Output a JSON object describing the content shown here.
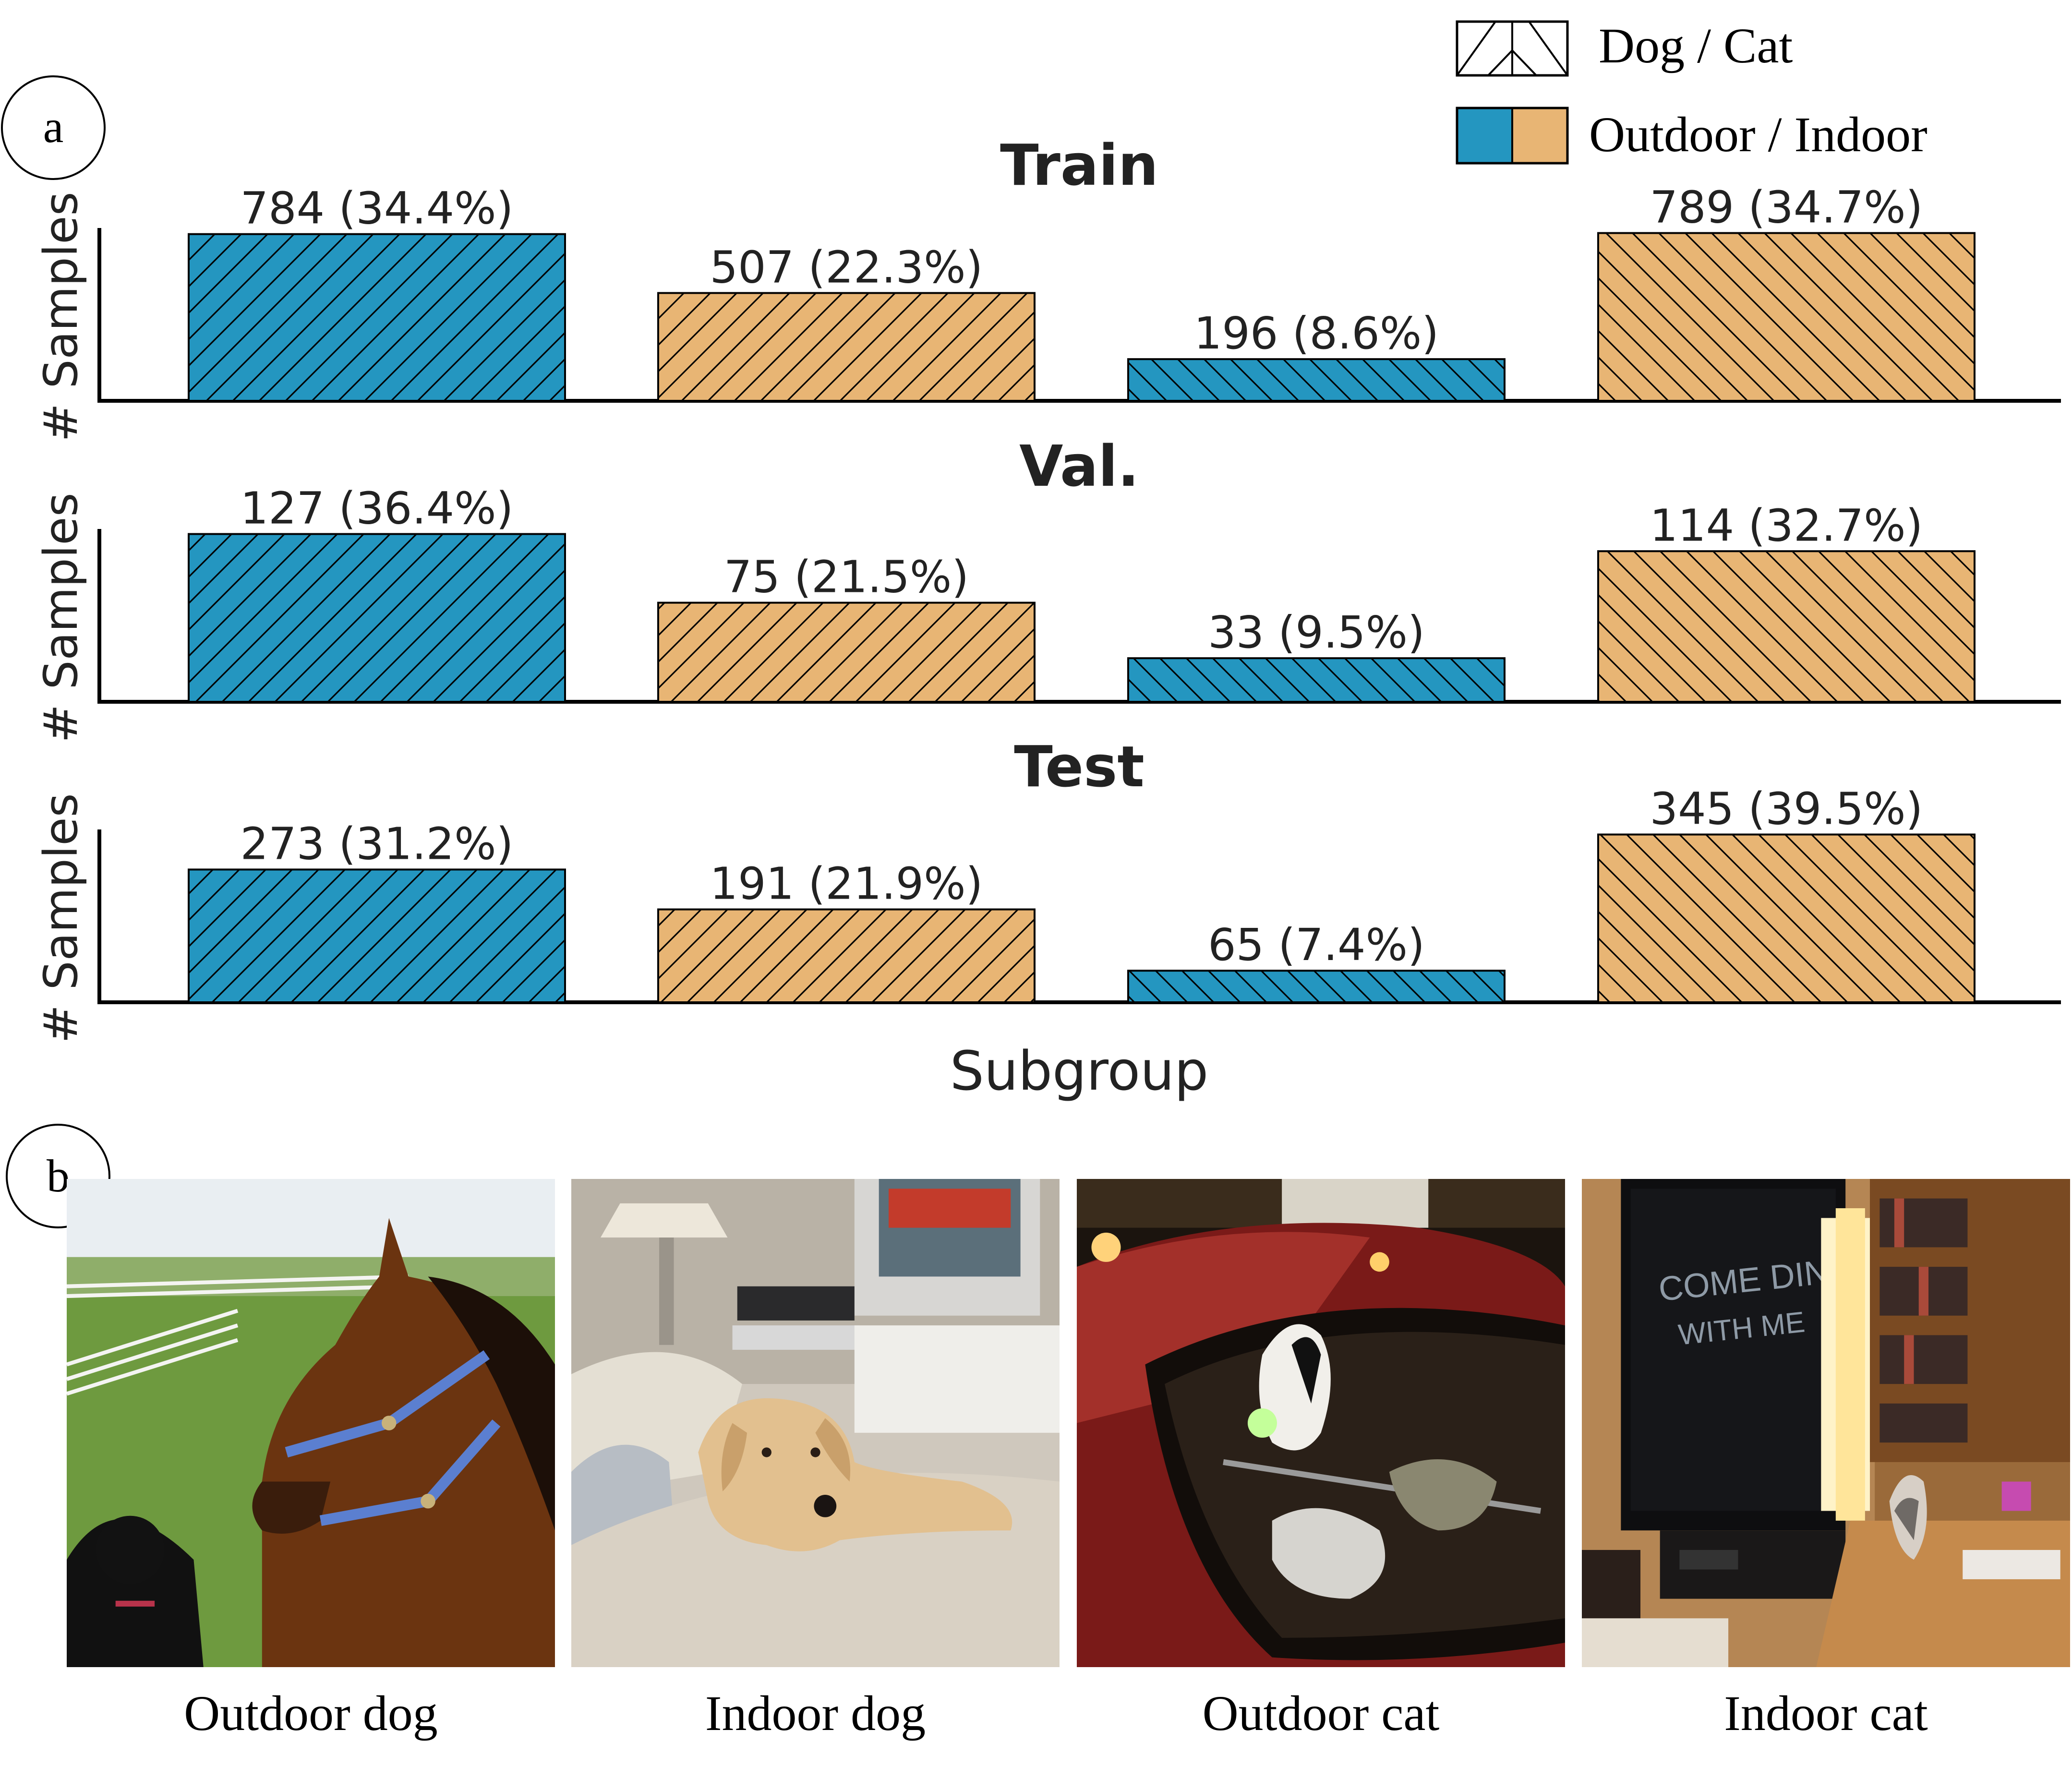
{
  "panel_labels": {
    "a": "a",
    "b": "b"
  },
  "legend": {
    "pattern_label": "Dog / Cat",
    "color_label": "Outdoor / Indoor",
    "colors": {
      "outdoor": "#2496c0",
      "indoor": "#e8b574"
    }
  },
  "chart_data": [
    {
      "type": "bar",
      "title": "Train",
      "ylabel": "# Samples",
      "categories": [
        "Outdoor dog",
        "Indoor dog",
        "Outdoor cat",
        "Indoor cat"
      ],
      "values": [
        784,
        507,
        196,
        789
      ],
      "labels": [
        "784 (34.4%)",
        "507 (22.3%)",
        "196 (8.6%)",
        "789 (34.7%)"
      ]
    },
    {
      "type": "bar",
      "title": "Val.",
      "ylabel": "# Samples",
      "categories": [
        "Outdoor dog",
        "Indoor dog",
        "Outdoor cat",
        "Indoor cat"
      ],
      "values": [
        127,
        75,
        33,
        114
      ],
      "labels": [
        "127 (36.4%)",
        "75 (21.5%)",
        "33 (9.5%)",
        "114 (32.7%)"
      ]
    },
    {
      "type": "bar",
      "title": "Test",
      "ylabel": "# Samples",
      "categories": [
        "Outdoor dog",
        "Indoor dog",
        "Outdoor cat",
        "Indoor cat"
      ],
      "values": [
        273,
        191,
        65,
        345
      ],
      "labels": [
        "273 (31.2%)",
        "191 (21.9%)",
        "65 (7.4%)",
        "345 (39.5%)"
      ]
    }
  ],
  "xlabel": "Subgroup",
  "bar_styles": [
    {
      "color": "outdoor",
      "hatch": "dog"
    },
    {
      "color": "indoor",
      "hatch": "dog"
    },
    {
      "color": "outdoor",
      "hatch": "cat"
    },
    {
      "color": "indoor",
      "hatch": "cat"
    }
  ],
  "photos": [
    {
      "caption": "Outdoor dog"
    },
    {
      "caption": "Indoor dog"
    },
    {
      "caption": "Outdoor cat"
    },
    {
      "caption": "Indoor cat"
    }
  ]
}
